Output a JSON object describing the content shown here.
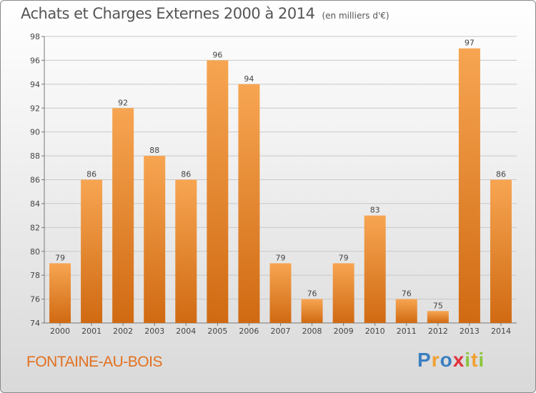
{
  "header": {
    "title": "Achats et Charges Externes 2000 à 2014",
    "subtitle": "(en milliers d'€)"
  },
  "footer": {
    "place": "FONTAINE-AU-BOIS",
    "logo_letters": [
      {
        "ch": "P",
        "color": "#3a7fc1"
      },
      {
        "ch": "r",
        "color": "#f0a030"
      },
      {
        "ch": "o",
        "color": "#3a7fc1"
      },
      {
        "ch": "x",
        "color": "#e0303a"
      },
      {
        "ch": "i",
        "color": "#8cc63f"
      },
      {
        "ch": "t",
        "color": "#f0a030"
      },
      {
        "ch": "i",
        "color": "#8cc63f"
      }
    ]
  },
  "colors": {
    "bar_light": "#f7a552",
    "bar_dark": "#d06a12",
    "grid": "#c8c8c8",
    "accent": "#e2701f"
  },
  "chart_data": {
    "type": "bar",
    "categories": [
      "2000",
      "2001",
      "2002",
      "2003",
      "2004",
      "2005",
      "2006",
      "2007",
      "2008",
      "2009",
      "2010",
      "2011",
      "2012",
      "2013",
      "2014"
    ],
    "values": [
      79,
      86,
      92,
      88,
      86,
      96,
      94,
      79,
      76,
      79,
      83,
      76,
      75,
      97,
      86
    ],
    "data_labels": [
      "79",
      "86",
      "92",
      "88",
      "86",
      "96",
      "94",
      "79",
      "76",
      "79",
      "83",
      "76",
      "75",
      "97",
      "86"
    ],
    "title": "Achats et Charges Externes 2000 à 2014",
    "subtitle": "(en milliers d'€)",
    "ylim": [
      74,
      98
    ],
    "yticks": [
      74,
      76,
      78,
      80,
      82,
      84,
      86,
      88,
      90,
      92,
      94,
      96,
      98
    ],
    "grid": true
  }
}
